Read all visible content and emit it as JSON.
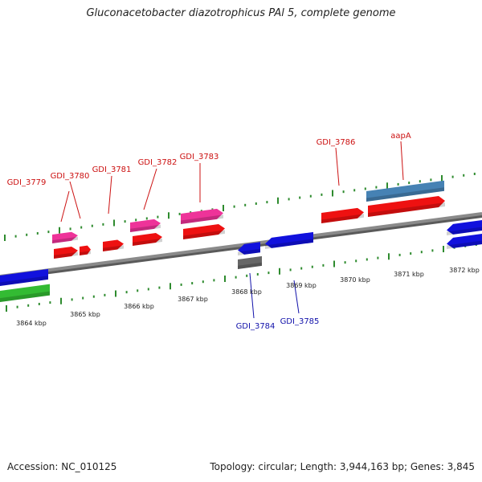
{
  "title": "Gluconacetobacter diazotrophicus PAl 5, complete genome",
  "footer": {
    "accession": "Accession: NC_010125",
    "summary": "Topology: circular; Length: 3,944,163 bp; Genes: 3,845"
  },
  "colors": {
    "backbone": "#8a8a8a",
    "tick": "#2e8b2e",
    "forward_label": "#cc1111",
    "reverse_label": "#1111aa",
    "red_gene": "#ee1111",
    "pink_gene": "#ee3399",
    "blue_gene": "#1111dd",
    "green_gene": "#33bb33",
    "gray_gene": "#666666",
    "steel_gene": "#4682b4"
  },
  "scale": {
    "unit": "kbp",
    "labels": [
      "3864 kbp",
      "3865 kbp",
      "3866 kbp",
      "3867 kbp",
      "3868 kbp",
      "3869 kbp",
      "3870 kbp",
      "3871 kbp",
      "3872 kbp"
    ]
  },
  "gene_labels_forward": [
    "GDI_3779",
    "GDI_3780",
    "GDI_3781",
    "GDI_3782",
    "GDI_3783",
    "GDI_3786",
    "aapA"
  ],
  "gene_labels_reverse": [
    "GDI_3784",
    "GDI_3785"
  ]
}
